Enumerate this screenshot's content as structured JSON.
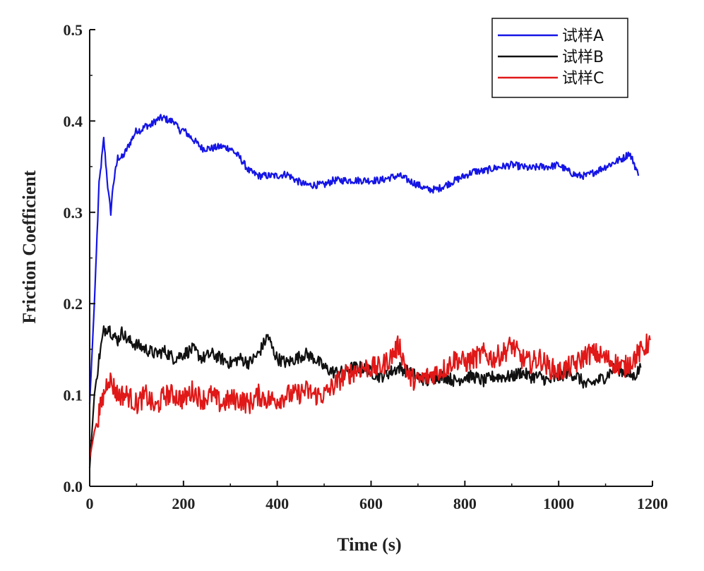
{
  "chart_data": {
    "type": "line",
    "title": "",
    "xlabel": "Time (s)",
    "ylabel": "Friction Coefficient",
    "xlim": [
      0,
      1200
    ],
    "ylim": [
      0.0,
      0.5
    ],
    "xticks": [
      0,
      200,
      400,
      600,
      800,
      1000,
      1200
    ],
    "yticks": [
      0.0,
      0.1,
      0.2,
      0.3,
      0.4,
      0.5
    ],
    "xtick_labels": [
      "0",
      "200",
      "400",
      "600",
      "800",
      "1000",
      "1200"
    ],
    "ytick_labels": [
      "0.0",
      "0.1",
      "0.2",
      "0.3",
      "0.4",
      "0.5"
    ],
    "grid": false,
    "legend_position": "top-right",
    "series": [
      {
        "name": "试样A",
        "color": "#1515e6",
        "x": [
          0,
          10,
          20,
          30,
          40,
          45,
          50,
          60,
          70,
          80,
          90,
          100,
          110,
          120,
          130,
          140,
          150,
          160,
          170,
          180,
          190,
          200,
          210,
          220,
          230,
          240,
          250,
          260,
          280,
          300,
          320,
          340,
          360,
          380,
          400,
          420,
          440,
          460,
          480,
          500,
          520,
          540,
          560,
          580,
          600,
          620,
          640,
          660,
          680,
          700,
          720,
          740,
          760,
          780,
          800,
          820,
          840,
          860,
          880,
          900,
          920,
          940,
          960,
          980,
          1000,
          1020,
          1040,
          1060,
          1080,
          1100,
          1120,
          1140,
          1150,
          1160,
          1170
        ],
        "y": [
          0.09,
          0.2,
          0.33,
          0.38,
          0.32,
          0.3,
          0.33,
          0.36,
          0.36,
          0.37,
          0.38,
          0.39,
          0.39,
          0.395,
          0.395,
          0.4,
          0.403,
          0.403,
          0.4,
          0.4,
          0.39,
          0.39,
          0.385,
          0.38,
          0.375,
          0.37,
          0.37,
          0.37,
          0.372,
          0.37,
          0.36,
          0.345,
          0.34,
          0.34,
          0.34,
          0.342,
          0.335,
          0.33,
          0.33,
          0.33,
          0.335,
          0.335,
          0.335,
          0.335,
          0.335,
          0.335,
          0.338,
          0.34,
          0.335,
          0.33,
          0.325,
          0.325,
          0.33,
          0.335,
          0.34,
          0.345,
          0.345,
          0.348,
          0.35,
          0.352,
          0.35,
          0.348,
          0.35,
          0.35,
          0.352,
          0.345,
          0.34,
          0.34,
          0.345,
          0.35,
          0.355,
          0.36,
          0.365,
          0.355,
          0.34
        ]
      },
      {
        "name": "试样B",
        "color": "#111111",
        "x": [
          0,
          10,
          20,
          30,
          40,
          50,
          60,
          70,
          80,
          100,
          120,
          140,
          160,
          180,
          200,
          220,
          240,
          260,
          280,
          300,
          320,
          340,
          360,
          380,
          390,
          400,
          420,
          440,
          460,
          480,
          500,
          520,
          540,
          560,
          580,
          600,
          620,
          640,
          660,
          680,
          700,
          720,
          740,
          760,
          780,
          800,
          820,
          840,
          860,
          880,
          900,
          920,
          940,
          960,
          980,
          1000,
          1020,
          1040,
          1060,
          1080,
          1100,
          1120,
          1140,
          1160,
          1175
        ],
        "y": [
          0.02,
          0.1,
          0.14,
          0.17,
          0.175,
          0.165,
          0.16,
          0.17,
          0.16,
          0.155,
          0.15,
          0.145,
          0.148,
          0.14,
          0.145,
          0.15,
          0.14,
          0.145,
          0.14,
          0.135,
          0.14,
          0.135,
          0.145,
          0.165,
          0.15,
          0.14,
          0.135,
          0.14,
          0.145,
          0.14,
          0.13,
          0.125,
          0.125,
          0.13,
          0.13,
          0.125,
          0.12,
          0.125,
          0.13,
          0.125,
          0.12,
          0.115,
          0.12,
          0.12,
          0.115,
          0.12,
          0.12,
          0.115,
          0.12,
          0.12,
          0.12,
          0.125,
          0.12,
          0.12,
          0.115,
          0.12,
          0.125,
          0.12,
          0.11,
          0.115,
          0.12,
          0.13,
          0.125,
          0.12,
          0.13
        ]
      },
      {
        "name": "试样C",
        "color": "#e01818",
        "x": [
          0,
          10,
          20,
          30,
          40,
          50,
          60,
          80,
          100,
          120,
          140,
          160,
          180,
          200,
          220,
          240,
          260,
          280,
          300,
          320,
          340,
          360,
          380,
          400,
          420,
          440,
          460,
          480,
          500,
          520,
          540,
          560,
          580,
          600,
          620,
          640,
          660,
          680,
          700,
          720,
          740,
          760,
          780,
          800,
          820,
          840,
          860,
          880,
          900,
          920,
          940,
          960,
          980,
          1000,
          1020,
          1040,
          1060,
          1080,
          1100,
          1120,
          1140,
          1160,
          1180,
          1195
        ],
        "y": [
          0.03,
          0.06,
          0.08,
          0.1,
          0.12,
          0.11,
          0.1,
          0.1,
          0.09,
          0.1,
          0.085,
          0.1,
          0.1,
          0.095,
          0.105,
          0.095,
          0.1,
          0.09,
          0.095,
          0.095,
          0.09,
          0.1,
          0.095,
          0.095,
          0.1,
          0.1,
          0.105,
          0.1,
          0.1,
          0.11,
          0.12,
          0.125,
          0.13,
          0.13,
          0.13,
          0.14,
          0.155,
          0.12,
          0.115,
          0.12,
          0.125,
          0.13,
          0.14,
          0.135,
          0.14,
          0.145,
          0.14,
          0.145,
          0.155,
          0.14,
          0.135,
          0.14,
          0.13,
          0.125,
          0.13,
          0.135,
          0.145,
          0.145,
          0.14,
          0.135,
          0.13,
          0.14,
          0.15,
          0.16
        ]
      }
    ]
  }
}
